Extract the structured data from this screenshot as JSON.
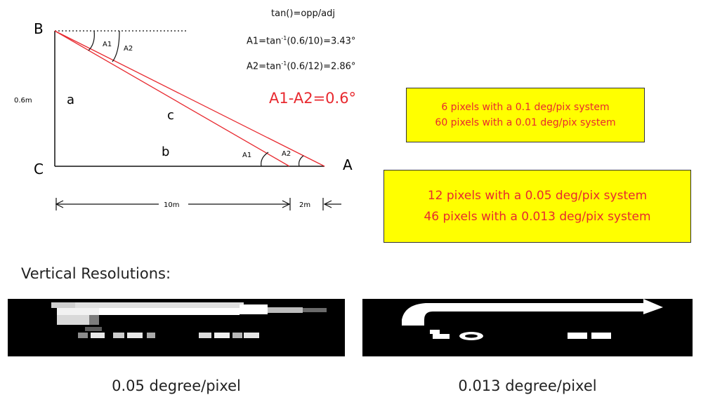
{
  "diagram": {
    "vertex_b": "B",
    "vertex_c": "C",
    "vertex_a": "A",
    "side_a": "a",
    "side_b": "b",
    "side_c": "c",
    "height_label": "0.6m",
    "angle_a1": "A1",
    "angle_a2": "A2",
    "dim_10m": "10m",
    "dim_2m": "2m"
  },
  "formulas": {
    "tan_def": "tan()=opp/adj",
    "a1_prefix": "A1=tan",
    "a1_suffix": "(0.6/10)=3.43°",
    "a2_prefix": "A2=tan",
    "a2_suffix": "(0.6/12)=2.86°",
    "inverse_sup": "-1",
    "difference": "A1-A2=0.6°"
  },
  "box_small": {
    "line1": "6 pixels with a 0.1 deg/pix system",
    "line2": "60 pixels with a 0.01 deg/pix system"
  },
  "box_large": {
    "line1": "12 pixels with a 0.05 deg/pix system",
    "line2": "46 pixels with a 0.013 deg/pix system"
  },
  "resolutions": {
    "title": "Vertical Resolutions:",
    "low_caption": "0.05 degree/pixel",
    "high_caption": "0.013 degree/pixel"
  },
  "colors": {
    "red": "#e8292f",
    "yellow": "#ffff00"
  }
}
